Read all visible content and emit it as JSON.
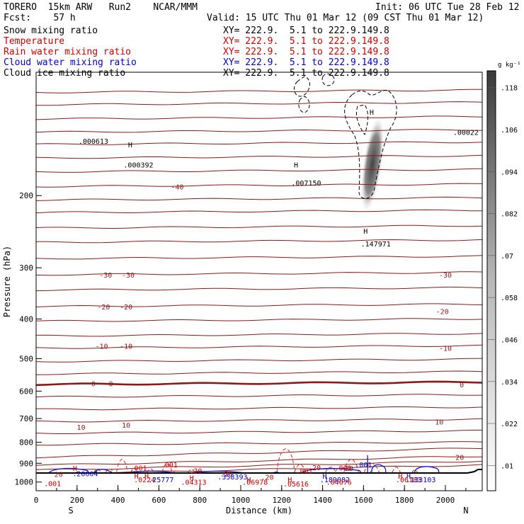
{
  "header": {
    "model_line": "TORERO  15km ARW   Run2    NCAR/MMM",
    "init_line": "Init: 06 UTC Tue 28 Feb 12",
    "fcst_line": "Fcst:    57 h",
    "valid_line": "Valid: 15 UTC Thu 01 Mar 12 (09 CST Thu 01 Mar 12)",
    "fields": [
      {
        "name": "Snow mixing ratio",
        "xy": "XY= 222.9.  5.1 to 222.9.149.8",
        "color": "#000000"
      },
      {
        "name": "Temperature",
        "xy": "XY= 222.9.  5.1 to 222.9.149.8",
        "color": "#cc0000"
      },
      {
        "name": "Rain water mixing ratio",
        "xy": "XY= 222.9.  5.1 to 222.9.149.8",
        "color": "#cc0000"
      },
      {
        "name": "Cloud water mixing ratio",
        "xy": "XY= 222.9.  5.1 to 222.9.149.8",
        "color": "#0000cc"
      },
      {
        "name": "Cloud ice mixing ratio",
        "xy": "XY= 222.9.  5.1 to 222.9.149.8",
        "color": "#000000"
      }
    ]
  },
  "chart_data": {
    "type": "contour-cross-section",
    "xlabel": "Distance (km)",
    "ylabel": "Pressure (hPa)",
    "xlim": [
      0,
      2180
    ],
    "ylim": [
      1050,
      100
    ],
    "x_ticks": [
      0,
      200,
      400,
      600,
      800,
      1000,
      1200,
      1400,
      1600,
      1800,
      2000
    ],
    "y_ticks": [
      200,
      300,
      400,
      500,
      600,
      700,
      800,
      900,
      1000
    ],
    "left_end_label": "S",
    "right_end_label": "N",
    "colorbar": {
      "unit": "g kg⁻¹",
      "levels": [
        ".01",
        ".022",
        ".034",
        ".046",
        ".058",
        ".07",
        ".082",
        ".094",
        ".106",
        ".118"
      ]
    },
    "temperature_contour_labels": [
      {
        "text": "-40",
        "x": 690,
        "p": 190
      },
      {
        "text": "-30",
        "x": 340,
        "p": 312
      },
      {
        "text": "-30",
        "x": 450,
        "p": 312
      },
      {
        "text": "-30",
        "x": 2000,
        "p": 312
      },
      {
        "text": "-20",
        "x": 330,
        "p": 373
      },
      {
        "text": "-20",
        "x": 440,
        "p": 373
      },
      {
        "text": "-20",
        "x": 1985,
        "p": 383
      },
      {
        "text": "-10",
        "x": 320,
        "p": 465
      },
      {
        "text": "-10",
        "x": 440,
        "p": 465
      },
      {
        "text": "-10",
        "x": 2000,
        "p": 471
      },
      {
        "text": "0",
        "x": 280,
        "p": 575
      },
      {
        "text": "0",
        "x": 365,
        "p": 575
      },
      {
        "text": "0",
        "x": 2080,
        "p": 578
      },
      {
        "text": "10",
        "x": 220,
        "p": 734
      },
      {
        "text": "10",
        "x": 440,
        "p": 725
      },
      {
        "text": "10",
        "x": 1970,
        "p": 712
      },
      {
        "text": "20",
        "x": 2070,
        "p": 870
      },
      {
        "text": "20",
        "x": 1530,
        "p": 925
      },
      {
        "text": "20",
        "x": 110,
        "p": 956
      }
    ],
    "extrema_labels": [
      {
        "text": "H",
        "x": 460,
        "p": 150,
        "color": "#000000"
      },
      {
        "text": ".000392",
        "x": 500,
        "p": 168,
        "color": "#000000"
      },
      {
        "text": ".000613",
        "x": 280,
        "p": 147,
        "color": "#000000"
      },
      {
        "text": "H",
        "x": 1270,
        "p": 168,
        "color": "#000000"
      },
      {
        "text": ".007150",
        "x": 1320,
        "p": 186,
        "color": "#000000"
      },
      {
        "text": "H",
        "x": 1610,
        "p": 244,
        "color": "#000000"
      },
      {
        "text": ".147971",
        "x": 1660,
        "p": 262,
        "color": "#000000"
      },
      {
        "text": ".00022",
        "x": 2100,
        "p": 140,
        "color": "#000000"
      },
      {
        "text": "H",
        "x": 1640,
        "p": 125,
        "color": "#000000"
      },
      {
        "text": ".001",
        "x": 500,
        "p": 922,
        "color": "#cc0000"
      },
      {
        "text": ".001",
        "x": 650,
        "p": 906,
        "color": "#cc0000"
      },
      {
        "text": ".001",
        "x": 80,
        "p": 1008,
        "color": "#cc0000"
      },
      {
        "text": ".001",
        "x": 1500,
        "p": 922,
        "color": "#cc0000"
      },
      {
        "text": ".001",
        "x": 1600,
        "p": 906,
        "color": "#0000cc"
      },
      {
        "text": ".001",
        "x": 1310,
        "p": 938,
        "color": "#cc0000"
      },
      {
        "text": ".20604",
        "x": 240,
        "p": 952,
        "color": "#0000cc"
      },
      {
        "text": "H",
        "x": 190,
        "p": 925,
        "color": "#cc0000"
      },
      {
        "text": "H",
        "x": 490,
        "p": 965,
        "color": "#cc0000"
      },
      {
        "text": "H",
        "x": 540,
        "p": 965,
        "color": "#cc0000"
      },
      {
        "text": ".0224",
        "x": 530,
        "p": 985,
        "color": "#cc0000"
      },
      {
        "text": ".25777",
        "x": 610,
        "p": 985,
        "color": "#0000cc"
      },
      {
        "text": "H",
        "x": 760,
        "p": 976,
        "color": "#cc0000"
      },
      {
        "text": ".04313",
        "x": 770,
        "p": 1000,
        "color": "#cc0000"
      },
      {
        "text": ".20",
        "x": 780,
        "p": 938,
        "color": "#cc0000"
      },
      {
        "text": ".20",
        "x": 930,
        "p": 954,
        "color": "#cc0000"
      },
      {
        "text": ".358393",
        "x": 960,
        "p": 970,
        "color": "#0000cc"
      },
      {
        "text": "H",
        "x": 1040,
        "p": 985,
        "color": "#cc0000"
      },
      {
        "text": ".06978",
        "x": 1070,
        "p": 1000,
        "color": "#cc0000"
      },
      {
        "text": "H",
        "x": 1240,
        "p": 985,
        "color": "#cc0000"
      },
      {
        "text": ".05616",
        "x": 1270,
        "p": 1010,
        "color": "#cc0000"
      },
      {
        "text": ".20",
        "x": 1360,
        "p": 920,
        "color": "#cc0000"
      },
      {
        "text": "H",
        "x": 1410,
        "p": 965,
        "color": "#0000cc"
      },
      {
        "text": ".189082",
        "x": 1460,
        "p": 985,
        "color": "#0000cc"
      },
      {
        "text": ".04076",
        "x": 1480,
        "p": 1000,
        "color": "#cc0000"
      },
      {
        "text": "H",
        "x": 1780,
        "p": 965,
        "color": "#cc0000"
      },
      {
        "text": "H",
        "x": 1820,
        "p": 965,
        "color": "#0000cc"
      },
      {
        "text": ".06183",
        "x": 1820,
        "p": 985,
        "color": "#cc0000"
      },
      {
        "text": ".133103",
        "x": 1880,
        "p": 985,
        "color": "#0000cc"
      },
      {
        "text": ".20",
        "x": 1130,
        "p": 972,
        "color": "#cc0000"
      }
    ],
    "colors": {
      "temperature": "#8b1a1a",
      "rain": "#dd2222",
      "cloud_water": "#1515cc",
      "ice": "#000000"
    }
  }
}
